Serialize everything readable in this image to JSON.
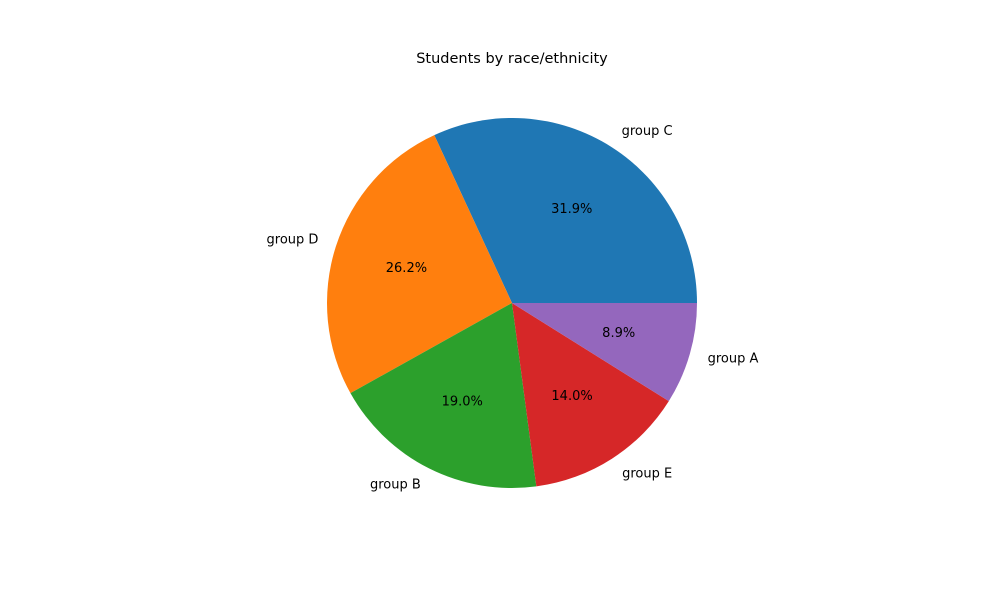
{
  "chart_data": {
    "type": "pie",
    "title": "Students by race/ethnicity",
    "start_angle_deg": 0,
    "direction": "counterclockwise",
    "slices": [
      {
        "label": "group C",
        "value": 31.9,
        "pct_label": "31.9%",
        "color": "#1f77b4"
      },
      {
        "label": "group D",
        "value": 26.2,
        "pct_label": "26.2%",
        "color": "#ff7f0e"
      },
      {
        "label": "group B",
        "value": 19.0,
        "pct_label": "19.0%",
        "color": "#2ca02c"
      },
      {
        "label": "group E",
        "value": 14.0,
        "pct_label": "14.0%",
        "color": "#d62728"
      },
      {
        "label": "group A",
        "value": 8.9,
        "pct_label": "8.9%",
        "color": "#9467bd"
      }
    ]
  }
}
